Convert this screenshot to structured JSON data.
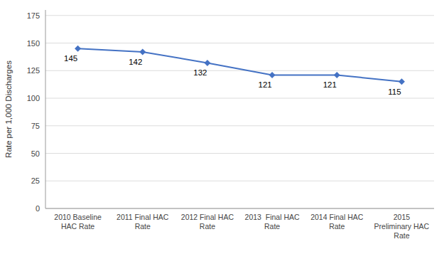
{
  "chart_data": {
    "type": "line",
    "categories": [
      "2010 Baseline\nHAC Rate",
      "2011 Final HAC\nRate",
      "2012 Final HAC\nRate",
      "2013  Final HAC\nRate",
      "2014 Final HAC\nRate",
      "2015\nPreliminary HAC\nRate"
    ],
    "values": [
      145,
      142,
      132,
      121,
      121,
      115
    ],
    "ylabel": "Rate per 1,000 Discharges",
    "ylim": [
      0,
      180
    ],
    "yticks": [
      0,
      25,
      50,
      75,
      100,
      125,
      150,
      175
    ],
    "color": "#4472C4",
    "marker": "diamond",
    "grid": true,
    "data_labels": true
  }
}
